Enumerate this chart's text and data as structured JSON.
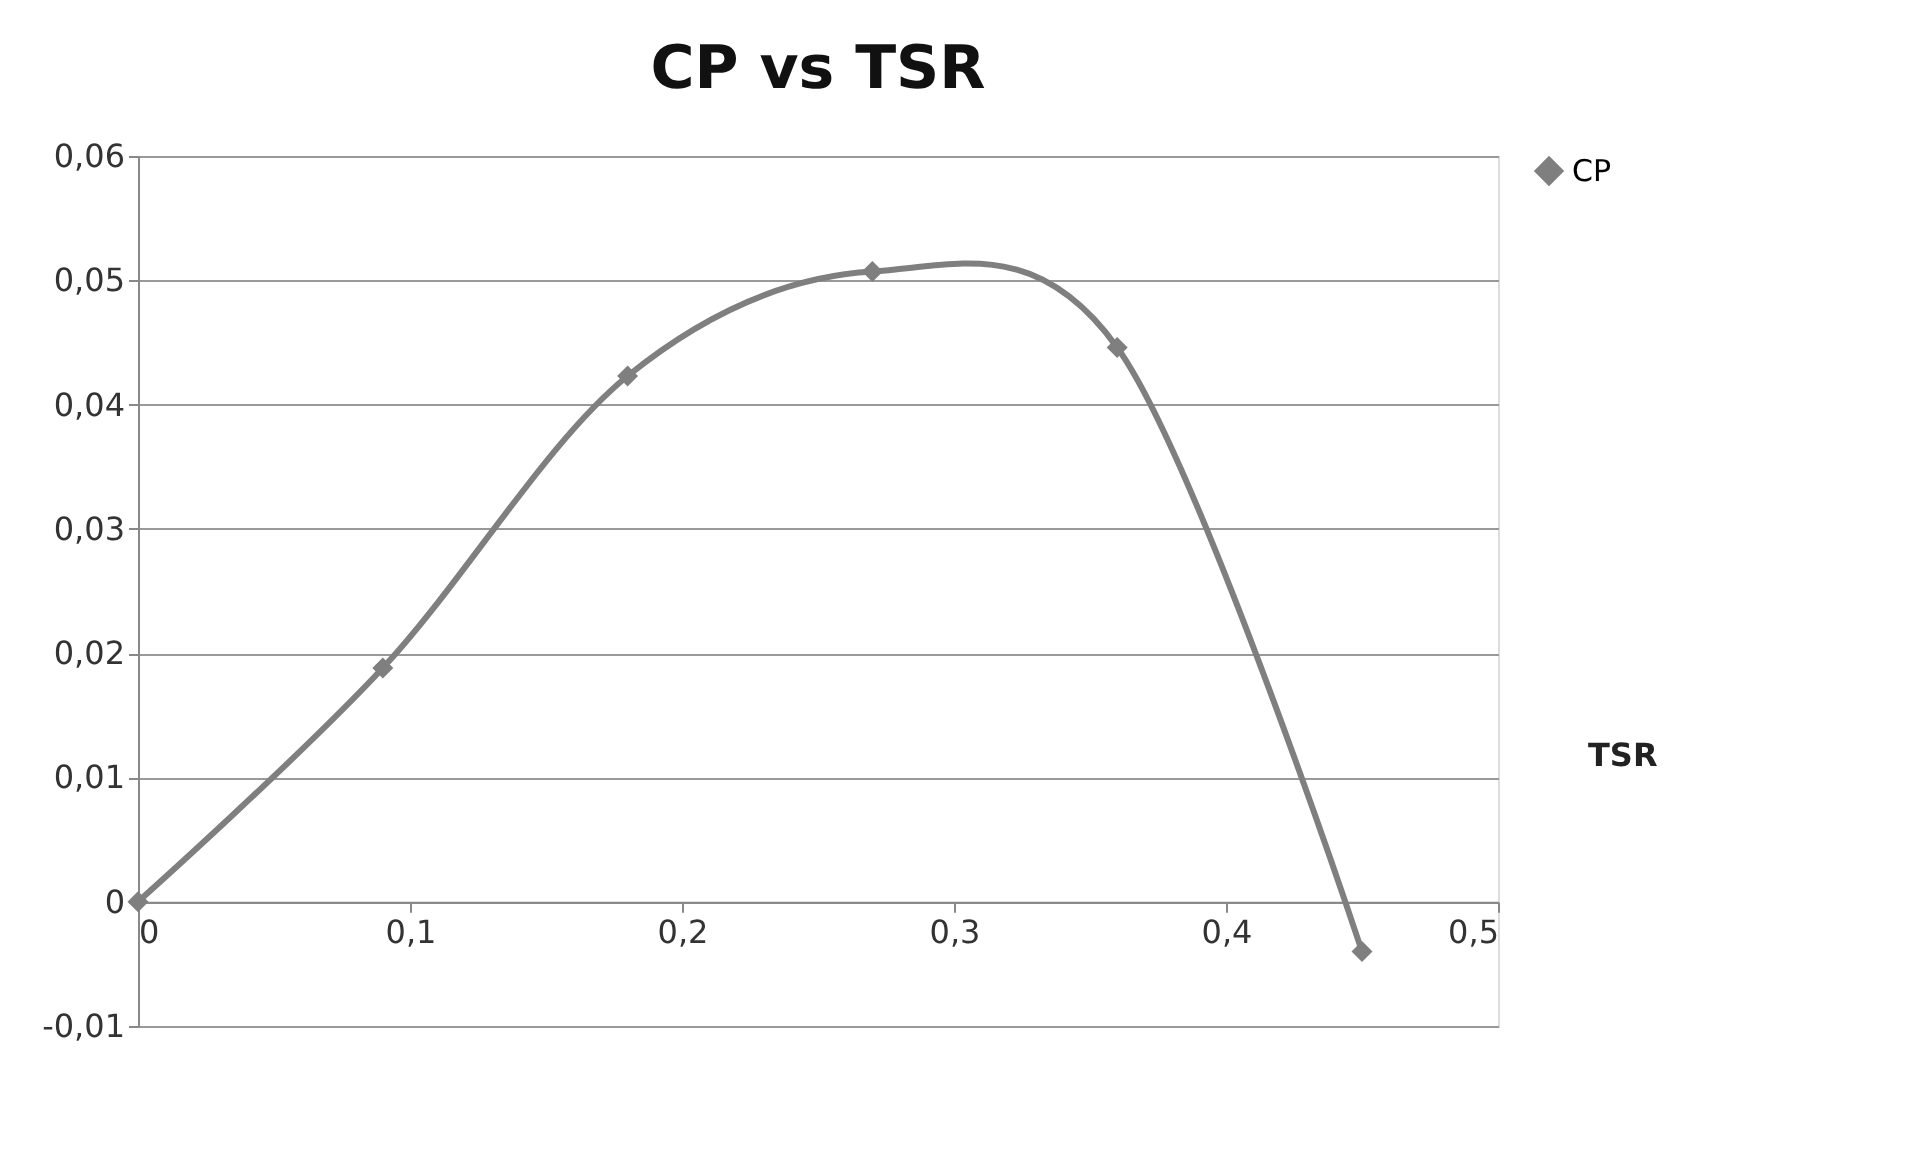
{
  "chart_data": {
    "type": "line",
    "title": "CP vs TSR",
    "xlabel": "TSR",
    "x": [
      0,
      0.09,
      0.18,
      0.27,
      0.36,
      0.45
    ],
    "series": [
      {
        "name": "CP",
        "color": "#7f7f7f",
        "values": [
          0,
          0.0188,
          0.0423,
          0.0507,
          0.0446,
          -0.004
        ]
      }
    ],
    "xlim": [
      0,
      0.5
    ],
    "xticks": [
      {
        "value": 0,
        "label": "0"
      },
      {
        "value": 0.1,
        "label": "0,1"
      },
      {
        "value": 0.2,
        "label": "0,2"
      },
      {
        "value": 0.3,
        "label": "0,3"
      },
      {
        "value": 0.4,
        "label": "0,4"
      },
      {
        "value": 0.5,
        "label": "0,5"
      }
    ],
    "ylim": [
      -0.01,
      0.06
    ],
    "yticks": [
      {
        "value": -0.01,
        "label": "-0,01"
      },
      {
        "value": 0,
        "label": "0"
      },
      {
        "value": 0.01,
        "label": "0,01"
      },
      {
        "value": 0.02,
        "label": "0,02"
      },
      {
        "value": 0.03,
        "label": "0,03"
      },
      {
        "value": 0.04,
        "label": "0,04"
      },
      {
        "value": 0.05,
        "label": "0,05"
      },
      {
        "value": 0.06,
        "label": "0,06"
      }
    ],
    "grid": "y",
    "legend": "right",
    "marker": "diamond",
    "line_style": "solid"
  }
}
